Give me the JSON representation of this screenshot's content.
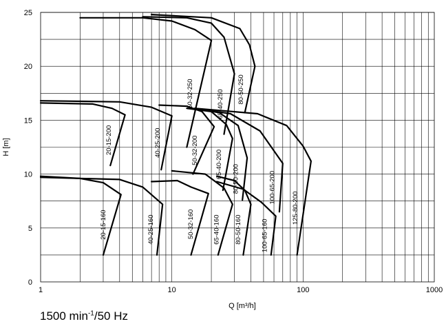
{
  "chart_data": {
    "type": "line",
    "xlabel": "Q [m³/h]",
    "ylabel": "H [m]",
    "xscale": "log",
    "xlim": [
      1,
      1000
    ],
    "ylim": [
      0,
      25
    ],
    "grid": true,
    "x_ticks": [
      1,
      10,
      100,
      1000
    ],
    "x_tick_labels": [
      "1",
      "10",
      "100",
      "1000"
    ],
    "y_ticks": [
      0,
      5,
      10,
      15,
      20,
      25
    ],
    "x_gridlines": [
      2,
      3,
      4,
      5,
      6,
      7,
      8,
      9,
      10,
      20,
      30,
      40,
      50,
      60,
      70,
      80,
      90,
      100,
      200,
      300,
      400,
      500,
      600,
      700,
      800,
      900
    ],
    "y_gridlines": [
      2.5,
      5,
      7.5,
      10,
      12.5,
      15,
      17.5,
      20,
      22.5,
      25
    ],
    "series": [
      {
        "name": "20-15-160",
        "points": [
          [
            1,
            9.8
          ],
          [
            2,
            9.6
          ],
          [
            3,
            9.2
          ],
          [
            4.1,
            8.1
          ],
          [
            3.0,
            2.5
          ]
        ]
      },
      {
        "name": "40-25-160",
        "points": [
          [
            1,
            9.7
          ],
          [
            4,
            9.5
          ],
          [
            6,
            8.8
          ],
          [
            8.5,
            7.2
          ],
          [
            7.7,
            2.5
          ]
        ]
      },
      {
        "name": "50-32-160",
        "points": [
          [
            7,
            9.3
          ],
          [
            11,
            9.4
          ],
          [
            14,
            8.8
          ],
          [
            19,
            8.2
          ],
          [
            14,
            2.5
          ]
        ]
      },
      {
        "name": "65-40-160",
        "points": [
          [
            10,
            10.3
          ],
          [
            18,
            10.0
          ],
          [
            25,
            8.7
          ],
          [
            29,
            7.2
          ],
          [
            22.5,
            2.5
          ]
        ]
      },
      {
        "name": "80-50-160",
        "points": [
          [
            22,
            9.8
          ],
          [
            30,
            9.4
          ],
          [
            36,
            8.5
          ],
          [
            40,
            7.2
          ],
          [
            35,
            2.5
          ]
        ]
      },
      {
        "name": "100-65-160",
        "points": [
          [
            22,
            9.3
          ],
          [
            35,
            8.6
          ],
          [
            48,
            7.4
          ],
          [
            62,
            6.1
          ],
          [
            57,
            2.5
          ]
        ]
      },
      {
        "name": "20-15-200",
        "points": [
          [
            1,
            16.6
          ],
          [
            2.5,
            16.5
          ],
          [
            3.5,
            16.1
          ],
          [
            4.4,
            15.5
          ],
          [
            3.4,
            10.8
          ]
        ]
      },
      {
        "name": "40-25-200",
        "points": [
          [
            1,
            16.8
          ],
          [
            4,
            16.7
          ],
          [
            7,
            16.2
          ],
          [
            10,
            15.4
          ],
          [
            8.3,
            10.4
          ]
        ]
      },
      {
        "name": "50-32-200",
        "points": [
          [
            8,
            16.4
          ],
          [
            13,
            16.3
          ],
          [
            17,
            15.8
          ],
          [
            21,
            14.4
          ],
          [
            14.5,
            10.0
          ]
        ]
      },
      {
        "name": "65-40-200",
        "points": [
          [
            13,
            16.1
          ],
          [
            20,
            15.8
          ],
          [
            26,
            14.6
          ],
          [
            29,
            13.3
          ],
          [
            24.5,
            8.5
          ]
        ]
      },
      {
        "name": "80-50-200",
        "points": [
          [
            15,
            16.1
          ],
          [
            23,
            15.7
          ],
          [
            32,
            14.5
          ],
          [
            37.5,
            11.5
          ],
          [
            34.5,
            7.6
          ]
        ]
      },
      {
        "name": "100-65-200",
        "points": [
          [
            15,
            16.1
          ],
          [
            28,
            15.6
          ],
          [
            47,
            14.0
          ],
          [
            70,
            11.0
          ],
          [
            66,
            6.5
          ]
        ]
      },
      {
        "name": "125-80-200",
        "points": [
          [
            15,
            16.1
          ],
          [
            45,
            15.6
          ],
          [
            75,
            14.5
          ],
          [
            100,
            12.6
          ],
          [
            115,
            11.2
          ],
          [
            90,
            2.5
          ]
        ]
      },
      {
        "name": "50-32-250",
        "points": [
          [
            2,
            24.5
          ],
          [
            6,
            24.5
          ],
          [
            10,
            24.2
          ],
          [
            15,
            23.4
          ],
          [
            20,
            22.4
          ],
          [
            13,
            12.5
          ]
        ]
      },
      {
        "name": "65-40-250",
        "points": [
          [
            6,
            24.6
          ],
          [
            13,
            24.5
          ],
          [
            20,
            24.0
          ],
          [
            25,
            22.7
          ],
          [
            30,
            19.3
          ],
          [
            25,
            13.7
          ]
        ]
      },
      {
        "name": "80-50-250",
        "points": [
          [
            7,
            24.8
          ],
          [
            20,
            24.5
          ],
          [
            33,
            23.5
          ],
          [
            39,
            22.0
          ],
          [
            43,
            20.0
          ],
          [
            36,
            15.7
          ]
        ]
      }
    ],
    "annotation": "1500 min-1/50 Hz"
  }
}
